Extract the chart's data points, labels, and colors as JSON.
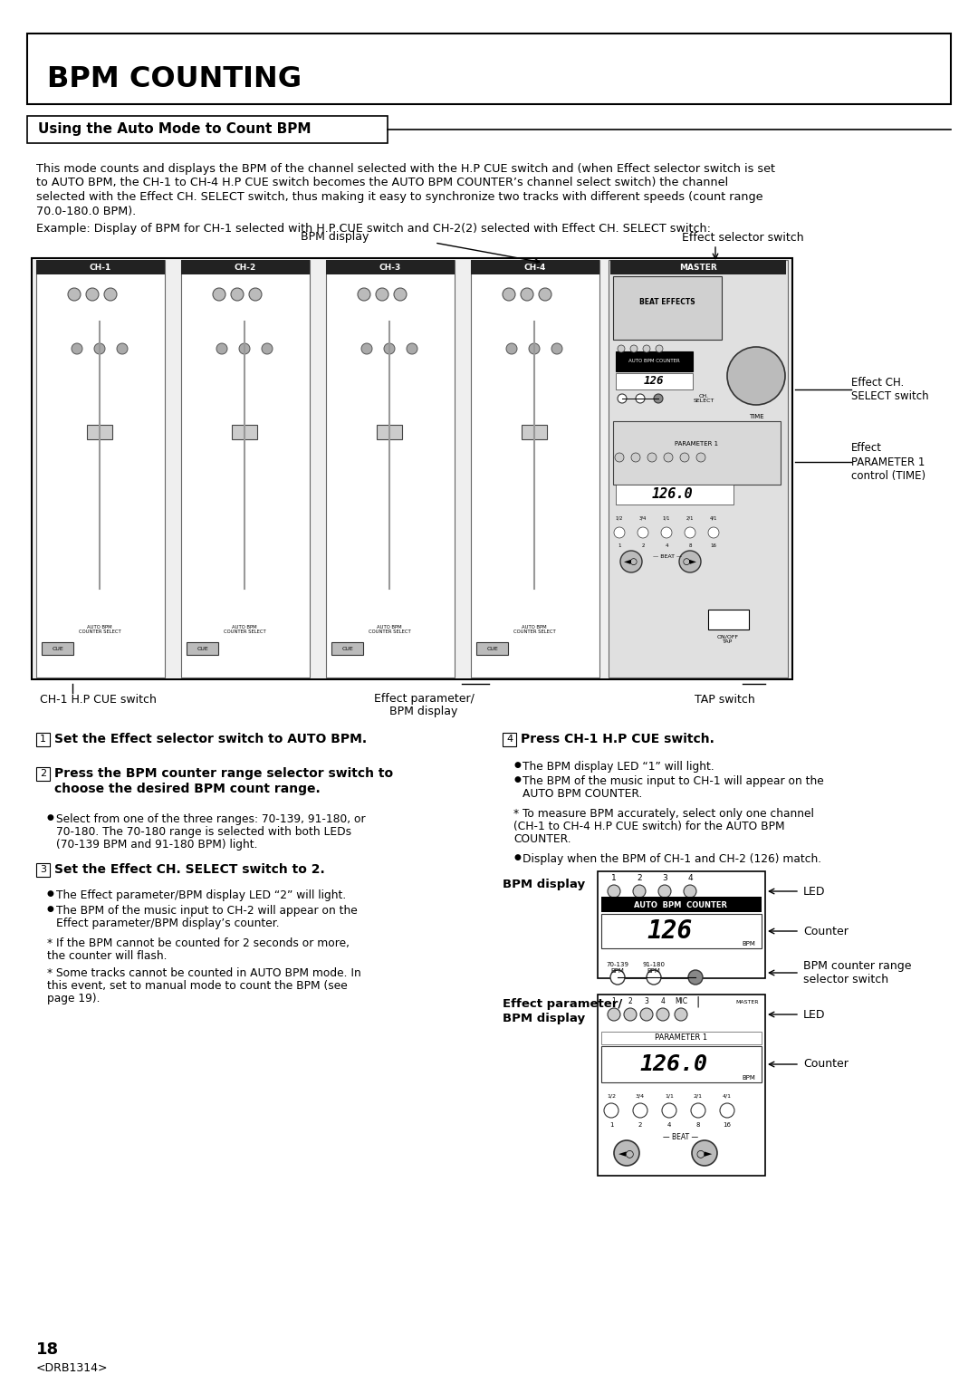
{
  "page_bg": "#ffffff",
  "main_title": "BPM COUNTING",
  "section_title": "Using the Auto Mode to Count BPM",
  "body_lines": [
    "This mode counts and displays the BPM of the channel selected with the H.P CUE switch and (when Effect selector switch is set",
    "to AUTO BPM, the CH-1 to CH-4 H.P CUE switch becomes the AUTO BPM COUNTER’s channel select switch) the channel",
    "selected with the Effect CH. SELECT switch, thus making it easy to synchronize two tracks with different speeds (count range",
    "70.0-180.0 BPM)."
  ],
  "example_text": "Example: Display of BPM for CH-1 selected with H.P CUE switch and CH-2(2) selected with Effect CH. SELECT switch:",
  "step1_num": "1",
  "step1_bold": "Set the Effect selector switch to AUTO BPM.",
  "step2_num": "2",
  "step2_bold_lines": [
    "Press the BPM counter range selector switch to",
    "choose the desired BPM count range."
  ],
  "step2_bullet_lines": [
    "Select from one of the three ranges: 70-139, 91-180, or",
    "70-180. The 70-180 range is selected with both LEDs",
    "(70-139 BPM and 91-180 BPM) light."
  ],
  "step3_num": "3",
  "step3_bold": "Set the Effect CH. SELECT switch to 2.",
  "step3_bullet1": "The Effect parameter/BPM display LED “2” will light.",
  "step3_bullet2_lines": [
    "The BPM of the music input to CH-2 will appear on the",
    "Effect parameter/BPM display’s counter."
  ],
  "step3_note1_lines": [
    "* If the BPM cannot be counted for 2 seconds or more,",
    "the counter will flash."
  ],
  "step3_note2_lines": [
    "* Some tracks cannot be counted in AUTO BPM mode. In",
    "this event, set to manual mode to count the BPM (see",
    "page 19)."
  ],
  "step4_num": "4",
  "step4_bold": "Press CH-1 H.P CUE switch.",
  "step4_bullet1": "The BPM display LED “1” will light.",
  "step4_bullet2_lines": [
    "The BPM of the music input to CH-1 will appear on the",
    "AUTO BPM COUNTER."
  ],
  "step4_note1_lines": [
    "* To measure BPM accurately, select only one channel",
    "(CH-1 to CH-4 H.P CUE switch) for the AUTO BPM",
    "COUNTER."
  ],
  "display_match_text": "Display when the BPM of CH-1 and CH-2 (126) match.",
  "bpm_display_label": "BPM display",
  "effect_param_label": "Effect parameter/\nBPM display",
  "led_label": "LED",
  "counter_label": "Counter",
  "bpm_counter_range_label": "BPM counter range\nselector switch",
  "label_bpm_display_top": "BPM display",
  "label_effect_selector": "Effect selector switch",
  "label_ch1_hp_cue": "CH-1 H.P CUE switch",
  "label_effect_param_bpm": "Effect parameter/\nBPM display",
  "label_tap_switch": "TAP switch",
  "label_effect_ch_select": "Effect CH.\nSELECT switch",
  "label_effect_param1": "Effect\nPARAMETER 1\ncontrol (TIME)",
  "page_number": "18",
  "page_code": "<DRB1314>"
}
